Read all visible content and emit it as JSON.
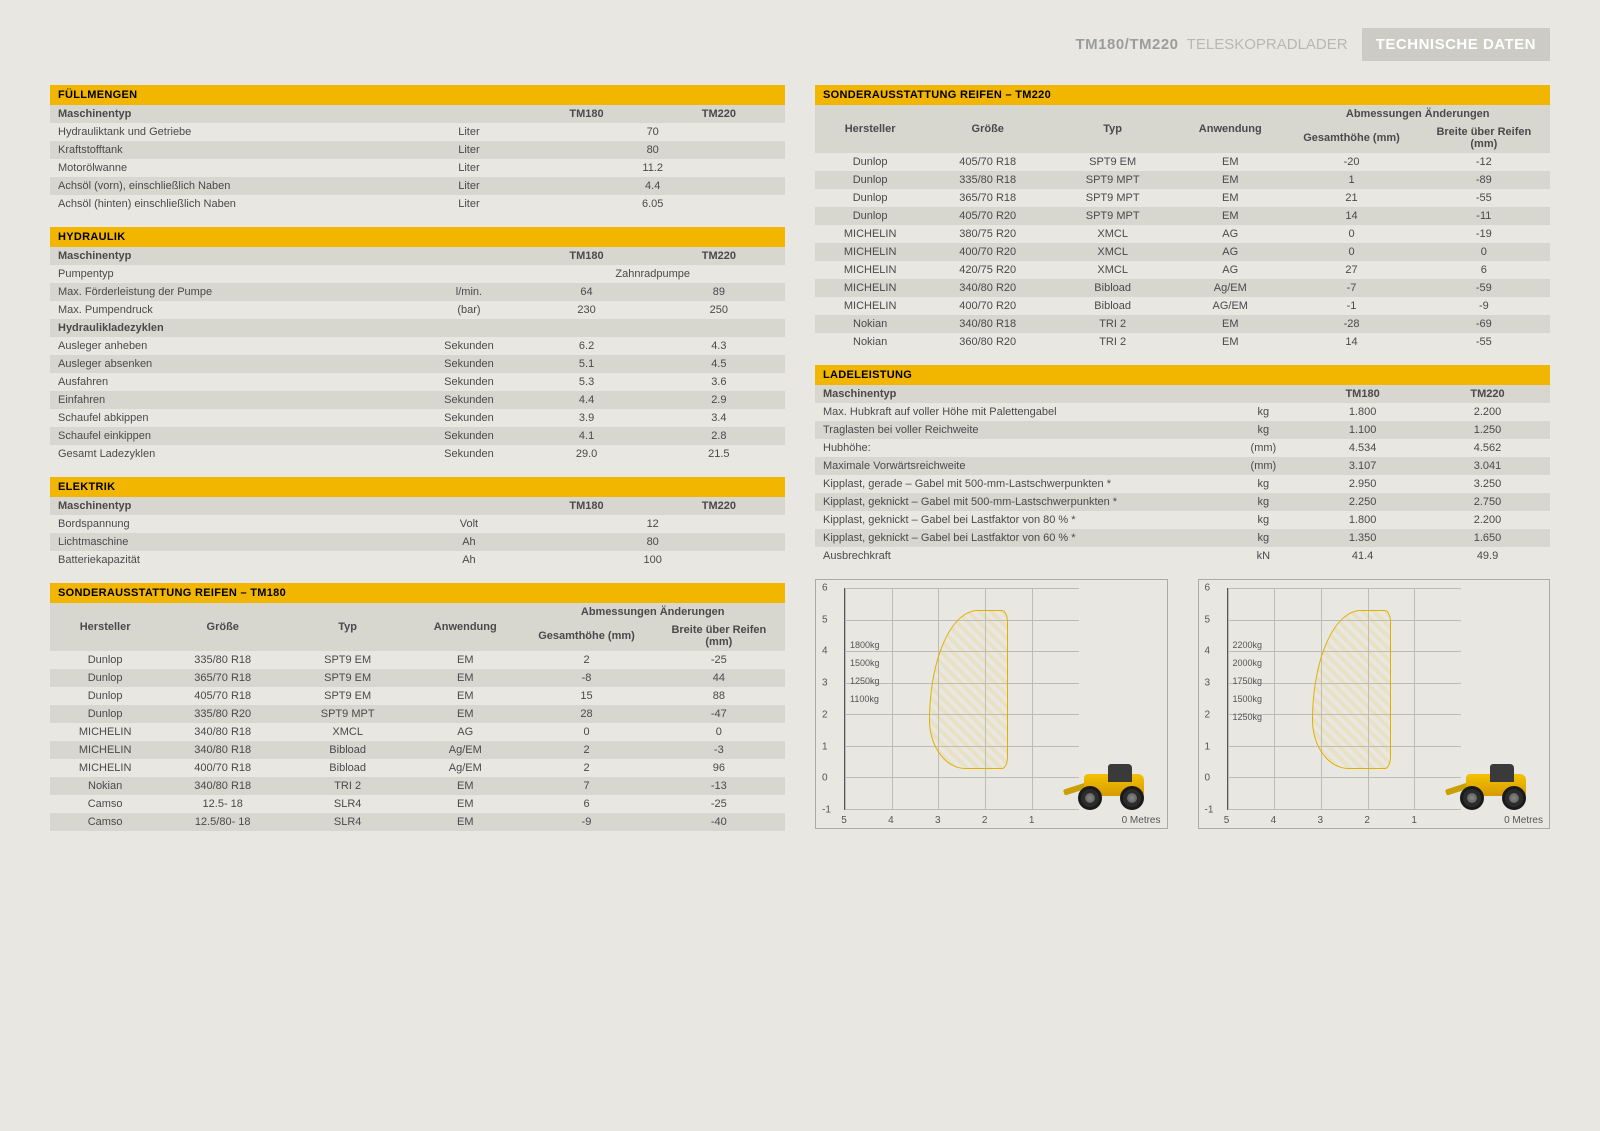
{
  "header": {
    "model": "TM180/TM220",
    "subtitle": "TELESKOPRADLADER",
    "badge": "TECHNISCHE DATEN"
  },
  "labels": {
    "machinetype": "Maschinentyp",
    "tm180": "TM180",
    "tm220": "TM220",
    "hersteller": "Hersteller",
    "groesse": "Größe",
    "typ": "Typ",
    "anwendung": "Anwendung",
    "abmessungen": "Abmessungen Änderungen",
    "gesamthoehe": "Gesamthöhe (mm)",
    "breite": "Breite über Reifen (mm)",
    "metres": "0 Metres"
  },
  "fuell": {
    "title": "FÜLLMENGEN",
    "rows": [
      {
        "name": "Hydrauliktank und Getriebe",
        "unit": "Liter",
        "val": "70"
      },
      {
        "name": "Kraftstofftank",
        "unit": "Liter",
        "val": "80"
      },
      {
        "name": "Motorölwanne",
        "unit": "Liter",
        "val": "11.2"
      },
      {
        "name": "Achsöl (vorn), einschließlich Naben",
        "unit": "Liter",
        "val": "4.4"
      },
      {
        "name": "Achsöl (hinten) einschließlich Naben",
        "unit": "Liter",
        "val": "6.05"
      }
    ]
  },
  "hydraulik": {
    "title": "HYDRAULIK",
    "pumpentyp_label": "Pumpentyp",
    "pumpentyp_val": "Zahnradpumpe",
    "rows1": [
      {
        "name": "Max. Förderleistung der Pumpe",
        "unit": "l/min.",
        "tm180": "64",
        "tm220": "89"
      },
      {
        "name": "Max. Pumpendruck",
        "unit": "(bar)",
        "tm180": "230",
        "tm220": "250"
      }
    ],
    "subheader": "Hydraulikladezyklen",
    "rows2": [
      {
        "name": "Ausleger anheben",
        "unit": "Sekunden",
        "tm180": "6.2",
        "tm220": "4.3"
      },
      {
        "name": "Ausleger absenken",
        "unit": "Sekunden",
        "tm180": "5.1",
        "tm220": "4.5"
      },
      {
        "name": "Ausfahren",
        "unit": "Sekunden",
        "tm180": "5.3",
        "tm220": "3.6"
      },
      {
        "name": "Einfahren",
        "unit": "Sekunden",
        "tm180": "4.4",
        "tm220": "2.9"
      },
      {
        "name": "Schaufel abkippen",
        "unit": "Sekunden",
        "tm180": "3.9",
        "tm220": "3.4"
      },
      {
        "name": "Schaufel einkippen",
        "unit": "Sekunden",
        "tm180": "4.1",
        "tm220": "2.8"
      },
      {
        "name": "Gesamt Ladezyklen",
        "unit": "Sekunden",
        "tm180": "29.0",
        "tm220": "21.5"
      }
    ]
  },
  "elektrik": {
    "title": "ELEKTRIK",
    "rows": [
      {
        "name": "Bordspannung",
        "unit": "Volt",
        "val": "12"
      },
      {
        "name": "Lichtmaschine",
        "unit": "Ah",
        "val": "80"
      },
      {
        "name": "Batteriekapazität",
        "unit": "Ah",
        "val": "100"
      }
    ]
  },
  "reifen180": {
    "title": "SONDERAUSSTATTUNG REIFEN – TM180",
    "rows": [
      {
        "h": "Dunlop",
        "g": "335/80 R18",
        "t": "SPT9 EM",
        "a": "EM",
        "gh": "2",
        "br": "-25"
      },
      {
        "h": "Dunlop",
        "g": "365/70 R18",
        "t": "SPT9 EM",
        "a": "EM",
        "gh": "-8",
        "br": "44"
      },
      {
        "h": "Dunlop",
        "g": "405/70 R18",
        "t": "SPT9 EM",
        "a": "EM",
        "gh": "15",
        "br": "88"
      },
      {
        "h": "Dunlop",
        "g": "335/80 R20",
        "t": "SPT9 MPT",
        "a": "EM",
        "gh": "28",
        "br": "-47"
      },
      {
        "h": "MICHELIN",
        "g": "340/80 R18",
        "t": "XMCL",
        "a": "AG",
        "gh": "0",
        "br": "0"
      },
      {
        "h": "MICHELIN",
        "g": "340/80 R18",
        "t": "Bibload",
        "a": "Ag/EM",
        "gh": "2",
        "br": "-3"
      },
      {
        "h": "MICHELIN",
        "g": "400/70 R18",
        "t": "Bibload",
        "a": "Ag/EM",
        "gh": "2",
        "br": "96"
      },
      {
        "h": "Nokian",
        "g": "340/80 R18",
        "t": "TRI 2",
        "a": "EM",
        "gh": "7",
        "br": "-13"
      },
      {
        "h": "Camso",
        "g": "12.5- 18",
        "t": "SLR4",
        "a": "EM",
        "gh": "6",
        "br": "-25"
      },
      {
        "h": "Camso",
        "g": "12.5/80- 18",
        "t": "SLR4",
        "a": "EM",
        "gh": "-9",
        "br": "-40"
      }
    ]
  },
  "reifen220": {
    "title": "SONDERAUSSTATTUNG REIFEN – TM220",
    "rows": [
      {
        "h": "Dunlop",
        "g": "405/70 R18",
        "t": "SPT9 EM",
        "a": "EM",
        "gh": "-20",
        "br": "-12"
      },
      {
        "h": "Dunlop",
        "g": "335/80 R18",
        "t": "SPT9 MPT",
        "a": "EM",
        "gh": "1",
        "br": "-89"
      },
      {
        "h": "Dunlop",
        "g": "365/70 R18",
        "t": "SPT9 MPT",
        "a": "EM",
        "gh": "21",
        "br": "-55"
      },
      {
        "h": "Dunlop",
        "g": "405/70 R20",
        "t": "SPT9 MPT",
        "a": "EM",
        "gh": "14",
        "br": "-11"
      },
      {
        "h": "MICHELIN",
        "g": "380/75 R20",
        "t": "XMCL",
        "a": "AG",
        "gh": "0",
        "br": "-19"
      },
      {
        "h": "MICHELIN",
        "g": "400/70 R20",
        "t": "XMCL",
        "a": "AG",
        "gh": "0",
        "br": "0"
      },
      {
        "h": "MICHELIN",
        "g": "420/75 R20",
        "t": "XMCL",
        "a": "AG",
        "gh": "27",
        "br": "6"
      },
      {
        "h": "MICHELIN",
        "g": "340/80 R20",
        "t": "Bibload",
        "a": "Ag/EM",
        "gh": "-7",
        "br": "-59"
      },
      {
        "h": "MICHELIN",
        "g": "400/70 R20",
        "t": "Bibload",
        "a": "AG/EM",
        "gh": "-1",
        "br": "-9"
      },
      {
        "h": "Nokian",
        "g": "340/80 R18",
        "t": "TRI 2",
        "a": "EM",
        "gh": "-28",
        "br": "-69"
      },
      {
        "h": "Nokian",
        "g": "360/80 R20",
        "t": "TRI 2",
        "a": "EM",
        "gh": "14",
        "br": "-55"
      }
    ]
  },
  "lade": {
    "title": "LADELEISTUNG",
    "rows": [
      {
        "name": "Max. Hubkraft auf voller Höhe mit Palettengabel",
        "unit": "kg",
        "tm180": "1.800",
        "tm220": "2.200"
      },
      {
        "name": "Traglasten bei voller Reichweite",
        "unit": "kg",
        "tm180": "1.100",
        "tm220": "1.250"
      },
      {
        "name": "Hubhöhe:",
        "unit": "(mm)",
        "tm180": "4.534",
        "tm220": "4.562"
      },
      {
        "name": "Maximale Vorwärtsreichweite",
        "unit": "(mm)",
        "tm180": "3.107",
        "tm220": "3.041"
      },
      {
        "name": "Kipplast, gerade – Gabel mit 500-mm-Lastschwerpunkten *",
        "unit": "kg",
        "tm180": "2.950",
        "tm220": "3.250"
      },
      {
        "name": "Kipplast, geknickt – Gabel mit 500-mm-Lastschwerpunkten *",
        "unit": "kg",
        "tm180": "2.250",
        "tm220": "2.750"
      },
      {
        "name": "Kipplast, geknickt – Gabel bei Lastfaktor von 80 % *",
        "unit": "kg",
        "tm180": "1.800",
        "tm220": "2.200"
      },
      {
        "name": "Kipplast, geknickt – Gabel bei Lastfaktor von 60 % *",
        "unit": "kg",
        "tm180": "1.350",
        "tm220": "1.650"
      },
      {
        "name": "Ausbrechkraft",
        "unit": "kN",
        "tm180": "41.4",
        "tm220": "49.9"
      }
    ]
  },
  "chart180": {
    "yticks": [
      "-1",
      "0",
      "1",
      "2",
      "3",
      "4",
      "5",
      "6"
    ],
    "xticks": [
      "5",
      "4",
      "3",
      "2",
      "1"
    ],
    "kglabels": [
      "1800kg",
      "1500kg",
      "1250kg",
      "1100kg"
    ]
  },
  "chart220": {
    "yticks": [
      "-1",
      "0",
      "1",
      "2",
      "3",
      "4",
      "5",
      "6"
    ],
    "xticks": [
      "5",
      "4",
      "3",
      "2",
      "1"
    ],
    "kglabels": [
      "2200kg",
      "2000kg",
      "1750kg",
      "1500kg",
      "1250kg"
    ]
  }
}
